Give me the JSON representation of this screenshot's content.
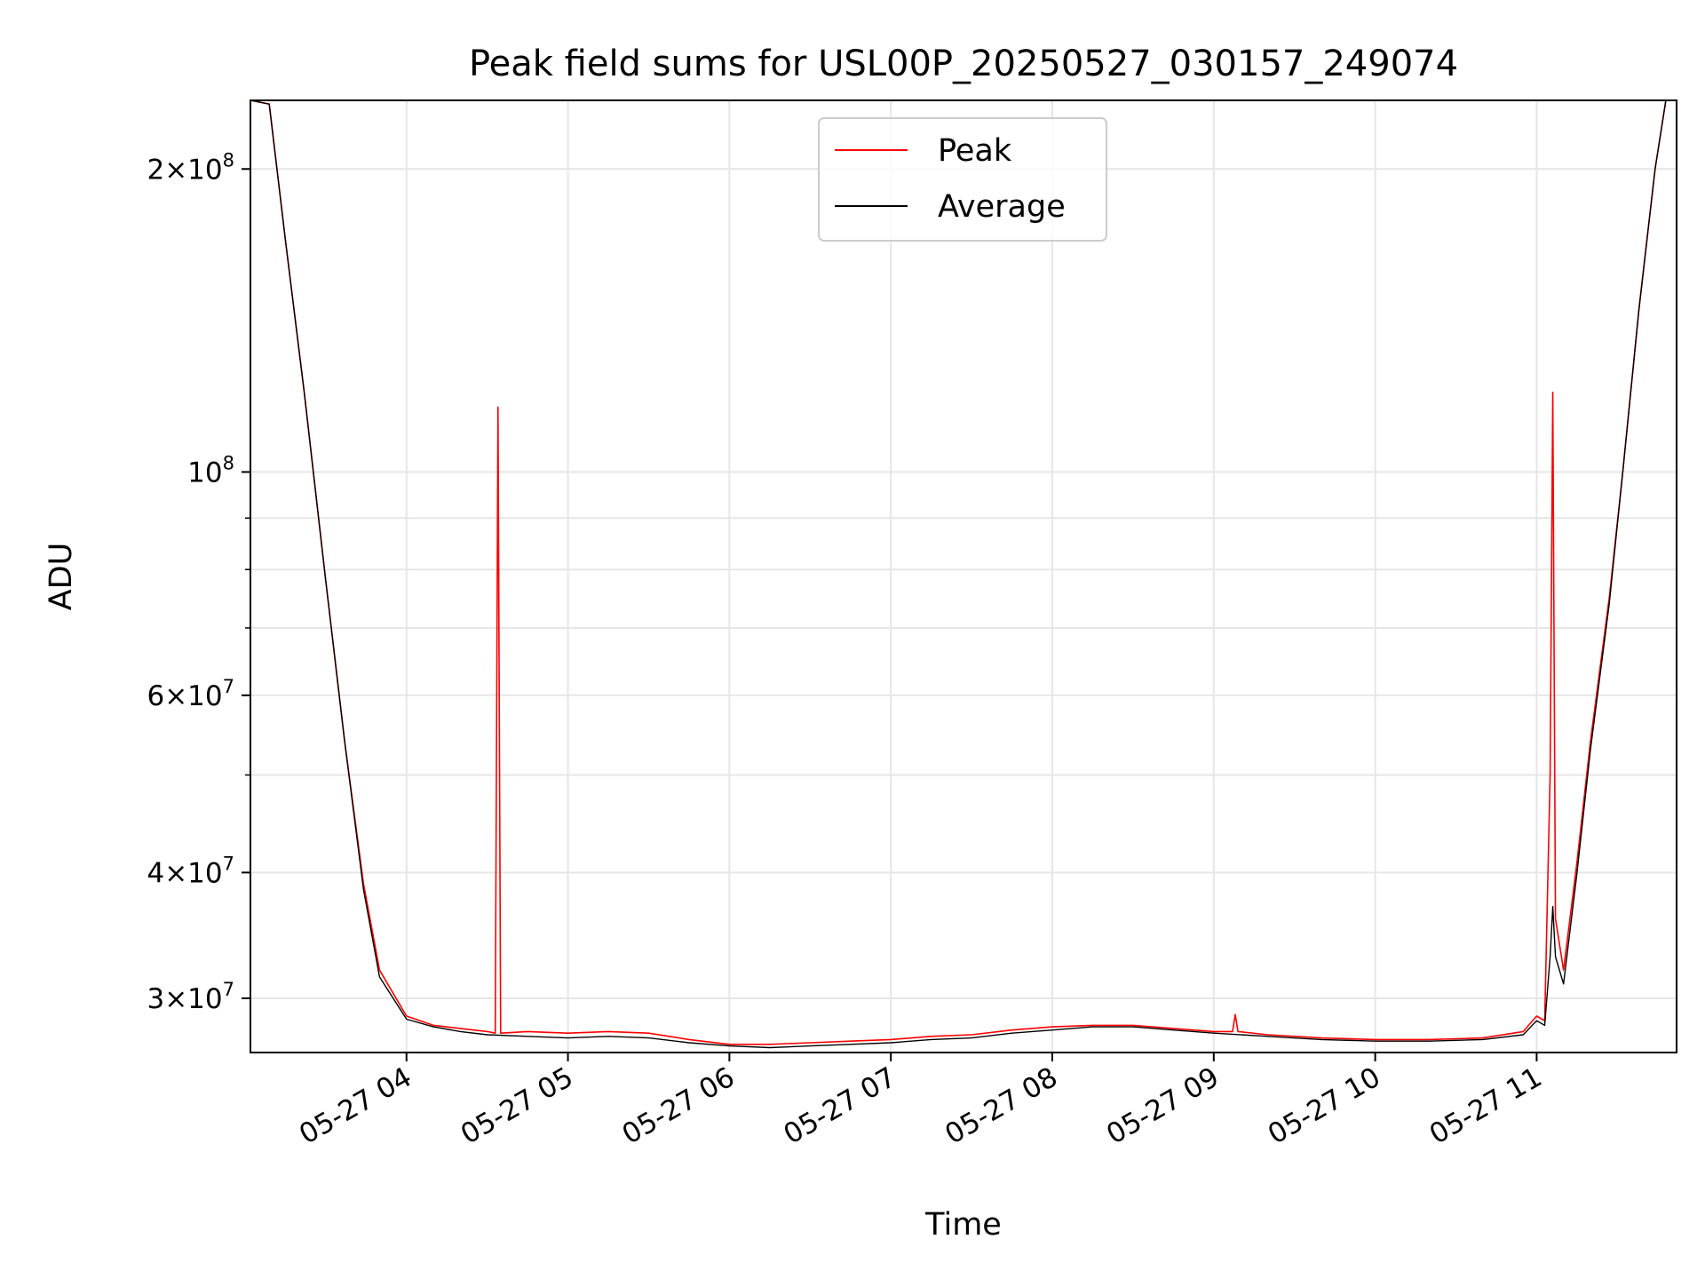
{
  "chart_data": {
    "type": "line",
    "title": "Peak field sums for USL00P_20250527_030157_249074",
    "xlabel": "Time",
    "ylabel": "ADU",
    "yscale": "log",
    "xlim": [
      "2025-05-27 03:02",
      "2025-05-27 11:52"
    ],
    "ylim": [
      26500000,
      234000000
    ],
    "x_ticks": [
      "05-27 04",
      "05-27 05",
      "05-27 06",
      "05-27 07",
      "05-27 08",
      "05-27 09",
      "05-27 10",
      "05-27 11"
    ],
    "x_tick_hours": [
      4,
      5,
      6,
      7,
      8,
      9,
      10,
      11
    ],
    "y_ticks": [
      {
        "label_base": "3",
        "exp": "7",
        "value": 30000000
      },
      {
        "label_base": "4",
        "exp": "7",
        "value": 40000000
      },
      {
        "label_base": "6",
        "exp": "7",
        "value": 60000000
      },
      {
        "label_base": "",
        "exp": "8",
        "value": 100000000
      },
      {
        "label_base": "2",
        "exp": "8",
        "value": 200000000
      }
    ],
    "y_minor_ticks": [
      50000000,
      70000000,
      80000000,
      90000000
    ],
    "grid": true,
    "legend_position": "top-center",
    "series": [
      {
        "name": "Peak",
        "color": "#ff0000",
        "points": [
          [
            "03:02",
            234000000
          ],
          [
            "03:09",
            232000000
          ],
          [
            "03:15",
            170000000
          ],
          [
            "03:22",
            120000000
          ],
          [
            "03:30",
            78000000
          ],
          [
            "03:37",
            54000000
          ],
          [
            "03:44",
            39000000
          ],
          [
            "03:50",
            32000000
          ],
          [
            "04:00",
            28800000
          ],
          [
            "04:10",
            28200000
          ],
          [
            "04:20",
            28000000
          ],
          [
            "04:30",
            27800000
          ],
          [
            "04:33",
            27700000
          ],
          [
            "04:34",
            116000000
          ],
          [
            "04:35",
            27700000
          ],
          [
            "04:45",
            27800000
          ],
          [
            "05:00",
            27700000
          ],
          [
            "05:15",
            27800000
          ],
          [
            "05:30",
            27700000
          ],
          [
            "05:45",
            27300000
          ],
          [
            "06:00",
            27000000
          ],
          [
            "06:15",
            27000000
          ],
          [
            "06:30",
            27100000
          ],
          [
            "06:45",
            27200000
          ],
          [
            "07:00",
            27300000
          ],
          [
            "07:15",
            27500000
          ],
          [
            "07:30",
            27600000
          ],
          [
            "07:45",
            27900000
          ],
          [
            "08:00",
            28100000
          ],
          [
            "08:15",
            28200000
          ],
          [
            "08:30",
            28200000
          ],
          [
            "08:45",
            28000000
          ],
          [
            "09:00",
            27800000
          ],
          [
            "09:07",
            27800000
          ],
          [
            "09:08",
            28900000
          ],
          [
            "09:09",
            27800000
          ],
          [
            "09:20",
            27600000
          ],
          [
            "09:40",
            27400000
          ],
          [
            "10:00",
            27300000
          ],
          [
            "10:20",
            27300000
          ],
          [
            "10:40",
            27400000
          ],
          [
            "10:55",
            27800000
          ],
          [
            "11:00",
            28800000
          ],
          [
            "11:03",
            28500000
          ],
          [
            "11:05",
            50000000
          ],
          [
            "11:06",
            120000000
          ],
          [
            "11:07",
            36000000
          ],
          [
            "11:10",
            32000000
          ],
          [
            "11:15",
            41000000
          ],
          [
            "11:20",
            54000000
          ],
          [
            "11:27",
            75000000
          ],
          [
            "11:32",
            100000000
          ],
          [
            "11:38",
            145000000
          ],
          [
            "11:44",
            200000000
          ],
          [
            "11:48",
            234000000
          ],
          [
            "11:52",
            234000000
          ]
        ]
      },
      {
        "name": "Average",
        "color": "#000000",
        "points": [
          [
            "03:02",
            234000000
          ],
          [
            "03:09",
            232000000
          ],
          [
            "03:15",
            170000000
          ],
          [
            "03:22",
            120000000
          ],
          [
            "03:30",
            78000000
          ],
          [
            "03:37",
            54000000
          ],
          [
            "03:44",
            38500000
          ],
          [
            "03:50",
            31500000
          ],
          [
            "04:00",
            28600000
          ],
          [
            "04:10",
            28100000
          ],
          [
            "04:20",
            27800000
          ],
          [
            "04:30",
            27600000
          ],
          [
            "04:45",
            27500000
          ],
          [
            "05:00",
            27400000
          ],
          [
            "05:15",
            27500000
          ],
          [
            "05:30",
            27400000
          ],
          [
            "05:45",
            27100000
          ],
          [
            "06:00",
            26900000
          ],
          [
            "06:15",
            26800000
          ],
          [
            "06:30",
            26900000
          ],
          [
            "06:45",
            27000000
          ],
          [
            "07:00",
            27100000
          ],
          [
            "07:15",
            27300000
          ],
          [
            "07:30",
            27400000
          ],
          [
            "07:45",
            27700000
          ],
          [
            "08:00",
            27900000
          ],
          [
            "08:15",
            28100000
          ],
          [
            "08:30",
            28100000
          ],
          [
            "08:45",
            27900000
          ],
          [
            "09:00",
            27700000
          ],
          [
            "09:20",
            27500000
          ],
          [
            "09:40",
            27300000
          ],
          [
            "10:00",
            27200000
          ],
          [
            "10:20",
            27200000
          ],
          [
            "10:40",
            27300000
          ],
          [
            "10:55",
            27600000
          ],
          [
            "11:00",
            28500000
          ],
          [
            "11:03",
            28200000
          ],
          [
            "11:05",
            33000000
          ],
          [
            "11:06",
            37000000
          ],
          [
            "11:07",
            33000000
          ],
          [
            "11:10",
            31000000
          ],
          [
            "11:15",
            40000000
          ],
          [
            "11:20",
            53000000
          ],
          [
            "11:27",
            74000000
          ],
          [
            "11:32",
            100000000
          ],
          [
            "11:38",
            145000000
          ],
          [
            "11:44",
            200000000
          ],
          [
            "11:48",
            234000000
          ],
          [
            "11:52",
            234000000
          ]
        ]
      }
    ]
  }
}
